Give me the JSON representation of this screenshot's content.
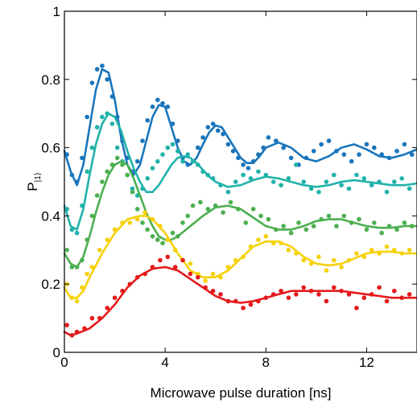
{
  "chart_data": {
    "type": "line",
    "title": "",
    "xlabel": "Microwave pulse duration [ns]",
    "ylabel": "P",
    "ylabel_subscript": "|1⟩",
    "xlim": [
      0,
      14
    ],
    "ylim": [
      0,
      1
    ],
    "xticks": [
      0,
      4,
      8,
      12
    ],
    "yticks": [
      0,
      0.2,
      0.4,
      0.6,
      0.8,
      1
    ],
    "ytick_labels": [
      "0",
      "0.2",
      "0.4",
      "0.6",
      "0.8",
      "1"
    ],
    "grid": false,
    "legend": "none",
    "series": [
      {
        "color": "#1a75bb",
        "fit": {
          "x": [
            0.0,
            0.25,
            0.5,
            0.75,
            1.0,
            1.25,
            1.5,
            1.75,
            2.0,
            2.25,
            2.5,
            2.75,
            3.0,
            3.25,
            3.5,
            3.75,
            4.0,
            4.25,
            4.5,
            4.75,
            5.0,
            5.25,
            5.5,
            5.75,
            6.0,
            6.25,
            6.5,
            6.75,
            7.0,
            7.25,
            7.5,
            7.75,
            8.0,
            8.5,
            9.0,
            9.5,
            10.0,
            10.5,
            11.0,
            11.5,
            12.0,
            12.5,
            13.0,
            13.5,
            14.0
          ],
          "y": [
            0.59,
            0.53,
            0.49,
            0.55,
            0.66,
            0.77,
            0.83,
            0.82,
            0.74,
            0.63,
            0.55,
            0.52,
            0.55,
            0.62,
            0.69,
            0.725,
            0.72,
            0.66,
            0.6,
            0.56,
            0.55,
            0.57,
            0.61,
            0.645,
            0.665,
            0.66,
            0.63,
            0.6,
            0.57,
            0.555,
            0.555,
            0.575,
            0.6,
            0.615,
            0.6,
            0.57,
            0.56,
            0.575,
            0.6,
            0.61,
            0.595,
            0.575,
            0.57,
            0.58,
            0.595
          ]
        },
        "points": {
          "x": [
            0.1,
            0.3,
            0.5,
            0.7,
            0.9,
            1.1,
            1.3,
            1.5,
            1.7,
            1.9,
            2.1,
            2.3,
            2.5,
            2.7,
            2.9,
            3.1,
            3.3,
            3.5,
            3.7,
            3.9,
            4.1,
            4.3,
            4.5,
            4.7,
            4.9,
            5.1,
            5.3,
            5.5,
            5.7,
            5.9,
            6.1,
            6.3,
            6.5,
            6.7,
            6.9,
            7.1,
            7.3,
            7.5,
            7.7,
            7.9,
            8.1,
            8.4,
            8.7,
            9.0,
            9.3,
            9.6,
            9.9,
            10.2,
            10.5,
            10.8,
            11.1,
            11.4,
            11.7,
            12.0,
            12.3,
            12.6,
            12.9,
            13.2,
            13.5,
            13.8
          ],
          "y": [
            0.58,
            0.52,
            0.5,
            0.57,
            0.69,
            0.79,
            0.83,
            0.84,
            0.8,
            0.75,
            0.69,
            0.62,
            0.57,
            0.53,
            0.56,
            0.62,
            0.68,
            0.72,
            0.74,
            0.73,
            0.72,
            0.67,
            0.62,
            0.57,
            0.55,
            0.56,
            0.6,
            0.63,
            0.66,
            0.67,
            0.65,
            0.64,
            0.61,
            0.59,
            0.57,
            0.55,
            0.54,
            0.56,
            0.58,
            0.6,
            0.63,
            0.62,
            0.6,
            0.57,
            0.55,
            0.57,
            0.59,
            0.61,
            0.62,
            0.59,
            0.58,
            0.56,
            0.58,
            0.61,
            0.6,
            0.58,
            0.57,
            0.59,
            0.61,
            0.58
          ]
        }
      },
      {
        "color": "#20b2aa",
        "fit": {
          "x": [
            0.0,
            0.25,
            0.5,
            0.75,
            1.0,
            1.25,
            1.5,
            1.75,
            2.0,
            2.25,
            2.5,
            2.75,
            3.0,
            3.25,
            3.5,
            3.75,
            4.0,
            4.25,
            4.5,
            4.75,
            5.0,
            5.25,
            5.5,
            5.75,
            6.0,
            6.5,
            7.0,
            7.5,
            8.0,
            8.5,
            9.0,
            9.5,
            10.0,
            10.5,
            11.0,
            11.5,
            12.0,
            12.5,
            13.0,
            13.5,
            14.0
          ],
          "y": [
            0.43,
            0.37,
            0.36,
            0.42,
            0.52,
            0.61,
            0.67,
            0.7,
            0.69,
            0.65,
            0.59,
            0.54,
            0.5,
            0.47,
            0.47,
            0.49,
            0.52,
            0.55,
            0.57,
            0.575,
            0.57,
            0.555,
            0.535,
            0.515,
            0.5,
            0.485,
            0.49,
            0.505,
            0.515,
            0.51,
            0.5,
            0.49,
            0.485,
            0.49,
            0.5,
            0.505,
            0.5,
            0.495,
            0.49,
            0.49,
            0.495
          ]
        },
        "points": {
          "x": [
            0.1,
            0.3,
            0.5,
            0.7,
            0.9,
            1.1,
            1.3,
            1.5,
            1.7,
            1.9,
            2.1,
            2.3,
            2.5,
            2.7,
            2.9,
            3.1,
            3.3,
            3.5,
            3.7,
            3.9,
            4.1,
            4.3,
            4.5,
            4.7,
            4.9,
            5.1,
            5.3,
            5.5,
            5.7,
            5.9,
            6.2,
            6.5,
            6.8,
            7.1,
            7.4,
            7.7,
            8.0,
            8.3,
            8.6,
            8.9,
            9.2,
            9.5,
            9.8,
            10.1,
            10.4,
            10.7,
            11.0,
            11.3,
            11.6,
            11.9,
            12.2,
            12.5,
            12.8,
            13.1,
            13.4,
            13.7
          ],
          "y": [
            0.42,
            0.36,
            0.35,
            0.43,
            0.53,
            0.6,
            0.66,
            0.69,
            0.7,
            0.67,
            0.6,
            0.56,
            0.52,
            0.48,
            0.46,
            0.48,
            0.51,
            0.54,
            0.56,
            0.58,
            0.6,
            0.61,
            0.59,
            0.56,
            0.58,
            0.56,
            0.55,
            0.53,
            0.52,
            0.51,
            0.49,
            0.47,
            0.5,
            0.52,
            0.51,
            0.53,
            0.52,
            0.5,
            0.49,
            0.51,
            0.55,
            0.5,
            0.48,
            0.47,
            0.5,
            0.52,
            0.49,
            0.48,
            0.52,
            0.51,
            0.49,
            0.5,
            0.47,
            0.5,
            0.51,
            0.48
          ]
        }
      },
      {
        "color": "#4caf50",
        "fit": {
          "x": [
            0.0,
            0.25,
            0.5,
            0.75,
            1.0,
            1.25,
            1.5,
            1.75,
            2.0,
            2.25,
            2.5,
            2.75,
            3.0,
            3.25,
            3.5,
            3.75,
            4.0,
            4.25,
            4.5,
            4.75,
            5.0,
            5.5,
            6.0,
            6.5,
            7.0,
            7.5,
            8.0,
            8.5,
            9.0,
            9.5,
            10.0,
            10.5,
            11.0,
            11.5,
            12.0,
            12.5,
            13.0,
            13.5,
            14.0
          ],
          "y": [
            0.29,
            0.26,
            0.25,
            0.28,
            0.34,
            0.41,
            0.47,
            0.52,
            0.55,
            0.56,
            0.55,
            0.51,
            0.46,
            0.41,
            0.37,
            0.34,
            0.33,
            0.33,
            0.34,
            0.355,
            0.37,
            0.4,
            0.425,
            0.43,
            0.42,
            0.395,
            0.37,
            0.36,
            0.36,
            0.37,
            0.385,
            0.39,
            0.39,
            0.38,
            0.37,
            0.365,
            0.365,
            0.37,
            0.37
          ]
        },
        "points": {
          "x": [
            0.1,
            0.3,
            0.5,
            0.7,
            0.9,
            1.1,
            1.3,
            1.5,
            1.7,
            1.9,
            2.1,
            2.3,
            2.5,
            2.7,
            2.9,
            3.1,
            3.3,
            3.5,
            3.7,
            3.9,
            4.1,
            4.3,
            4.5,
            4.7,
            4.9,
            5.1,
            5.4,
            5.7,
            6.0,
            6.3,
            6.6,
            6.9,
            7.2,
            7.5,
            7.8,
            8.1,
            8.4,
            8.7,
            9.0,
            9.3,
            9.6,
            9.9,
            10.2,
            10.5,
            10.8,
            11.1,
            11.4,
            11.7,
            12.0,
            12.3,
            12.6,
            12.9,
            13.2,
            13.5,
            13.8
          ],
          "y": [
            0.3,
            0.25,
            0.25,
            0.27,
            0.33,
            0.4,
            0.46,
            0.5,
            0.53,
            0.55,
            0.57,
            0.55,
            0.52,
            0.47,
            0.42,
            0.38,
            0.36,
            0.34,
            0.33,
            0.32,
            0.33,
            0.35,
            0.34,
            0.38,
            0.4,
            0.43,
            0.44,
            0.42,
            0.43,
            0.41,
            0.44,
            0.42,
            0.38,
            0.42,
            0.4,
            0.39,
            0.36,
            0.37,
            0.35,
            0.38,
            0.36,
            0.37,
            0.39,
            0.4,
            0.37,
            0.4,
            0.38,
            0.39,
            0.36,
            0.38,
            0.35,
            0.37,
            0.36,
            0.38,
            0.37
          ]
        }
      },
      {
        "color": "#f5d10a",
        "fit": {
          "x": [
            0.0,
            0.25,
            0.5,
            0.75,
            1.0,
            1.5,
            2.0,
            2.5,
            3.0,
            3.25,
            3.5,
            4.0,
            4.5,
            5.0,
            5.5,
            6.0,
            6.5,
            7.0,
            7.5,
            8.0,
            8.5,
            9.0,
            9.5,
            10.0,
            10.5,
            11.0,
            11.5,
            12.0,
            12.5,
            13.0,
            13.5,
            14.0
          ],
          "y": [
            0.19,
            0.16,
            0.16,
            0.18,
            0.22,
            0.29,
            0.35,
            0.39,
            0.4,
            0.4,
            0.39,
            0.35,
            0.29,
            0.24,
            0.22,
            0.22,
            0.24,
            0.275,
            0.31,
            0.325,
            0.325,
            0.31,
            0.28,
            0.26,
            0.255,
            0.26,
            0.275,
            0.29,
            0.295,
            0.295,
            0.29,
            0.29
          ]
        },
        "points": {
          "x": [
            0.1,
            0.3,
            0.5,
            0.7,
            0.9,
            1.1,
            1.4,
            1.7,
            2.0,
            2.3,
            2.6,
            2.9,
            3.2,
            3.5,
            3.8,
            4.1,
            4.4,
            4.7,
            5.0,
            5.3,
            5.6,
            5.9,
            6.2,
            6.5,
            6.8,
            7.1,
            7.4,
            7.7,
            8.0,
            8.3,
            8.6,
            8.9,
            9.2,
            9.5,
            9.8,
            10.1,
            10.4,
            10.7,
            11.0,
            11.3,
            11.6,
            11.9,
            12.2,
            12.5,
            12.8,
            13.1,
            13.4,
            13.7
          ],
          "y": [
            0.2,
            0.16,
            0.15,
            0.19,
            0.23,
            0.25,
            0.3,
            0.33,
            0.36,
            0.38,
            0.38,
            0.39,
            0.41,
            0.39,
            0.37,
            0.33,
            0.3,
            0.27,
            0.26,
            0.23,
            0.21,
            0.23,
            0.22,
            0.25,
            0.27,
            0.28,
            0.31,
            0.33,
            0.34,
            0.32,
            0.32,
            0.3,
            0.29,
            0.27,
            0.26,
            0.28,
            0.24,
            0.27,
            0.25,
            0.27,
            0.29,
            0.28,
            0.3,
            0.29,
            0.31,
            0.3,
            0.29,
            0.3
          ]
        }
      },
      {
        "color": "#e41a1c",
        "fit": {
          "x": [
            0.0,
            0.25,
            0.5,
            1.0,
            1.5,
            2.0,
            2.5,
            3.0,
            3.5,
            4.0,
            4.5,
            5.0,
            5.5,
            6.0,
            6.5,
            7.0,
            7.5,
            8.0,
            8.5,
            9.0,
            9.5,
            10.0,
            10.5,
            11.0,
            11.5,
            12.0,
            12.5,
            13.0,
            13.5,
            14.0
          ],
          "y": [
            0.06,
            0.05,
            0.055,
            0.07,
            0.1,
            0.14,
            0.19,
            0.225,
            0.245,
            0.25,
            0.24,
            0.215,
            0.19,
            0.165,
            0.15,
            0.145,
            0.15,
            0.16,
            0.17,
            0.18,
            0.18,
            0.18,
            0.18,
            0.18,
            0.175,
            0.17,
            0.165,
            0.16,
            0.16,
            0.16
          ]
        },
        "points": {
          "x": [
            0.1,
            0.3,
            0.5,
            0.8,
            1.1,
            1.4,
            1.7,
            2.0,
            2.3,
            2.6,
            2.9,
            3.2,
            3.5,
            3.8,
            4.1,
            4.4,
            4.7,
            5.0,
            5.3,
            5.6,
            5.9,
            6.2,
            6.5,
            6.8,
            7.1,
            7.4,
            7.7,
            8.0,
            8.3,
            8.6,
            8.9,
            9.2,
            9.5,
            9.8,
            10.1,
            10.4,
            10.7,
            11.0,
            11.3,
            11.6,
            11.9,
            12.2,
            12.5,
            12.8,
            13.1,
            13.4,
            13.7
          ],
          "y": [
            0.08,
            0.05,
            0.06,
            0.07,
            0.1,
            0.1,
            0.13,
            0.16,
            0.18,
            0.2,
            0.22,
            0.23,
            0.25,
            0.27,
            0.28,
            0.25,
            0.27,
            0.23,
            0.22,
            0.19,
            0.18,
            0.17,
            0.15,
            0.15,
            0.13,
            0.14,
            0.15,
            0.16,
            0.17,
            0.18,
            0.16,
            0.17,
            0.19,
            0.18,
            0.17,
            0.15,
            0.19,
            0.18,
            0.17,
            0.13,
            0.16,
            0.17,
            0.19,
            0.15,
            0.18,
            0.16,
            0.17
          ]
        }
      }
    ]
  }
}
